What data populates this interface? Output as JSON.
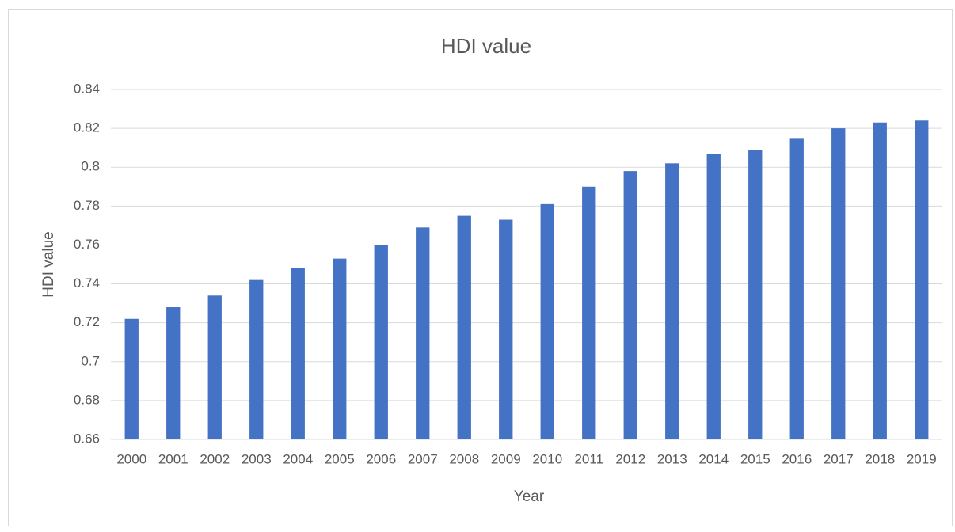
{
  "chart_data": {
    "type": "bar",
    "title": "HDI value",
    "x_label": "Year",
    "y_label": "HDI value",
    "categories": [
      "2000",
      "2001",
      "2002",
      "2003",
      "2004",
      "2005",
      "2006",
      "2007",
      "2008",
      "2009",
      "2010",
      "2011",
      "2012",
      "2013",
      "2014",
      "2015",
      "2016",
      "2017",
      "2018",
      "2019"
    ],
    "values": [
      0.722,
      0.728,
      0.734,
      0.742,
      0.748,
      0.753,
      0.76,
      0.769,
      0.775,
      0.773,
      0.781,
      0.79,
      0.798,
      0.802,
      0.807,
      0.809,
      0.815,
      0.82,
      0.823,
      0.824
    ],
    "color": "#4472c4",
    "ylim": [
      0.66,
      0.84
    ],
    "yticks": [
      0.66,
      0.68,
      0.7,
      0.72,
      0.74,
      0.76,
      0.78,
      0.8,
      0.82,
      0.84
    ],
    "grid": true
  }
}
